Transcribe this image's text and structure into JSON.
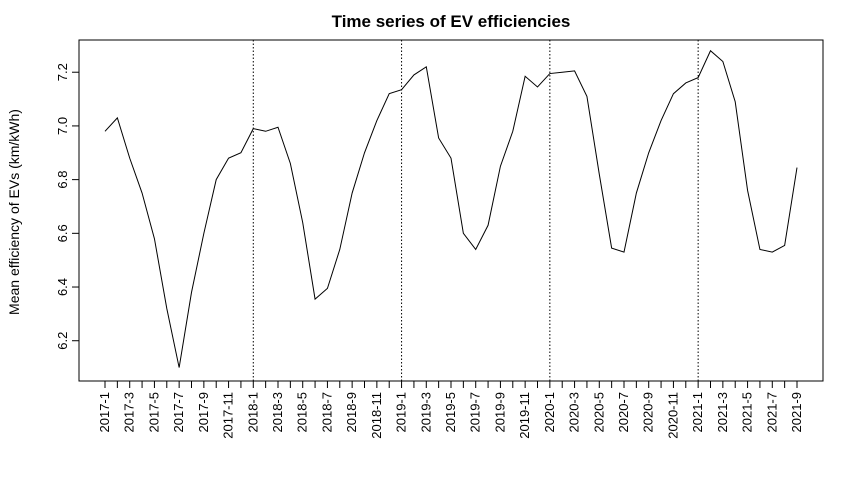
{
  "chart_data": {
    "type": "line",
    "title": "Time series of EV efficiencies",
    "xlabel": "",
    "ylabel": "Mean efficiency of EVs (km/kWh)",
    "ylim": [
      6.05,
      7.32
    ],
    "y_ticks": [
      6.2,
      6.4,
      6.6,
      6.8,
      7.0,
      7.2
    ],
    "y_tick_labels": [
      "6.2",
      "6.4",
      "6.6",
      "6.8",
      "7.0",
      "7.2"
    ],
    "x": [
      "2017-1",
      "2017-2",
      "2017-3",
      "2017-4",
      "2017-5",
      "2017-6",
      "2017-7",
      "2017-8",
      "2017-9",
      "2017-10",
      "2017-11",
      "2017-12",
      "2018-1",
      "2018-2",
      "2018-3",
      "2018-4",
      "2018-5",
      "2018-6",
      "2018-7",
      "2018-8",
      "2018-9",
      "2018-10",
      "2018-11",
      "2018-12",
      "2019-1",
      "2019-2",
      "2019-3",
      "2019-4",
      "2019-5",
      "2019-6",
      "2019-7",
      "2019-8",
      "2019-9",
      "2019-10",
      "2019-11",
      "2019-12",
      "2020-1",
      "2020-2",
      "2020-3",
      "2020-4",
      "2020-5",
      "2020-6",
      "2020-7",
      "2020-8",
      "2020-9",
      "2020-10",
      "2020-11",
      "2020-12",
      "2021-1",
      "2021-2",
      "2021-3",
      "2021-4",
      "2021-5",
      "2021-6",
      "2021-7",
      "2021-8",
      "2021-9"
    ],
    "x_tick_labels": [
      "2017-1",
      "2017-3",
      "2017-5",
      "2017-7",
      "2017-9",
      "2017-11",
      "2018-1",
      "2018-3",
      "2018-5",
      "2018-7",
      "2018-9",
      "2018-11",
      "2019-1",
      "2019-3",
      "2019-5",
      "2019-7",
      "2019-9",
      "2019-11",
      "2020-1",
      "2020-3",
      "2020-5",
      "2020-7",
      "2020-9",
      "2020-11",
      "2021-1",
      "2021-3",
      "2021-5",
      "2021-7",
      "2021-9"
    ],
    "series": [
      {
        "values": [
          6.98,
          7.03,
          6.88,
          6.75,
          6.58,
          6.32,
          6.1,
          6.38,
          6.6,
          6.8,
          6.88,
          6.9,
          6.99,
          6.98,
          6.995,
          6.86,
          6.64,
          6.355,
          6.395,
          6.54,
          6.75,
          6.9,
          7.02,
          7.12,
          7.135,
          7.19,
          7.22,
          6.955,
          6.88,
          6.6,
          6.54,
          6.63,
          6.85,
          6.98,
          7.185,
          7.145,
          7.195,
          7.2,
          7.205,
          7.11,
          6.82,
          6.545,
          6.53,
          6.75,
          6.9,
          7.02,
          7.12,
          7.16,
          7.18,
          7.28,
          7.24,
          7.09,
          6.76,
          6.54,
          6.53,
          6.555,
          6.845
        ],
        "color": "#000000"
      }
    ],
    "vertical_lines_at": [
      "2018-1",
      "2019-1",
      "2020-1",
      "2021-1"
    ],
    "grid": false,
    "legend": "none"
  }
}
